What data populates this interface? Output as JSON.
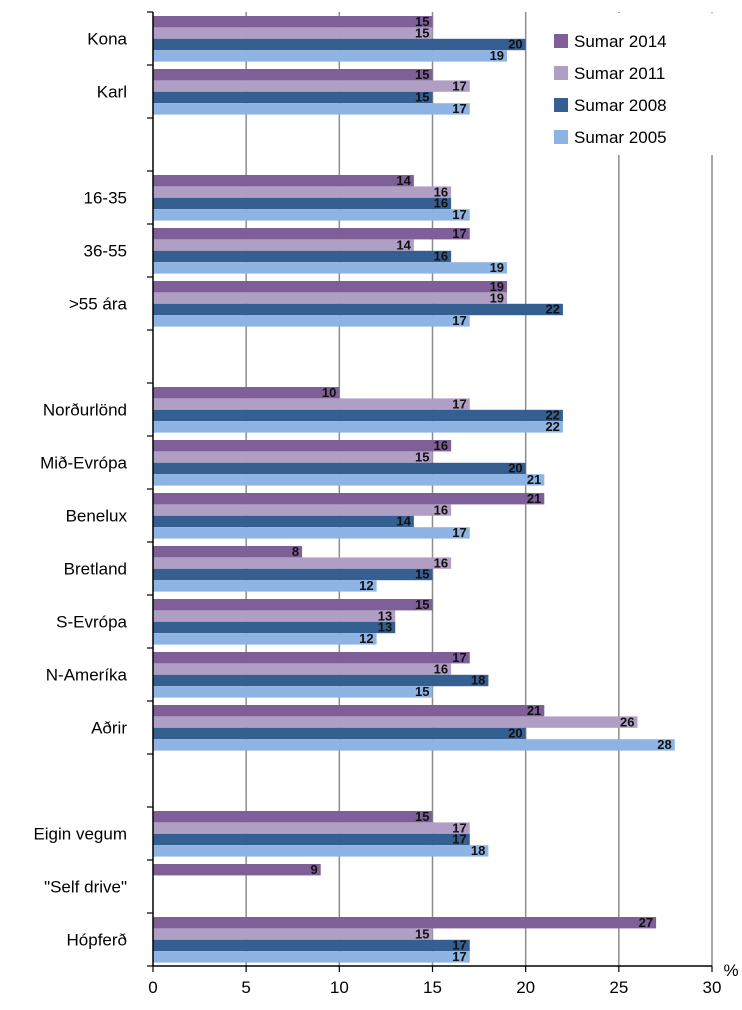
{
  "chart_data": {
    "type": "bar",
    "orientation": "horizontal",
    "xlim": [
      0,
      30
    ],
    "x_ticks": [
      0,
      5,
      10,
      15,
      20,
      25,
      30
    ],
    "xlabel": "%",
    "grid": true,
    "legend_position": "top-right",
    "series": [
      {
        "name": "Sumar 2014",
        "color": "#7f5f98"
      },
      {
        "name": "Sumar 2011",
        "color": "#b09ec4"
      },
      {
        "name": "Sumar 2008",
        "color": "#355f91"
      },
      {
        "name": "Sumar 2005",
        "color": "#8db4e2"
      }
    ],
    "groups": [
      {
        "label": "Kona",
        "values": [
          15,
          15,
          20,
          19
        ]
      },
      {
        "label": "Karl",
        "values": [
          15,
          17,
          15,
          17
        ]
      },
      {
        "label": "",
        "values": [
          null,
          null,
          null,
          null
        ]
      },
      {
        "label": "16-35",
        "values": [
          14,
          16,
          16,
          17
        ]
      },
      {
        "label": "36-55",
        "values": [
          17,
          14,
          16,
          19
        ]
      },
      {
        "label": ">55 ára",
        "values": [
          19,
          19,
          22,
          17
        ]
      },
      {
        "label": "",
        "values": [
          null,
          null,
          null,
          null
        ]
      },
      {
        "label": "Norðurlönd",
        "values": [
          10,
          17,
          22,
          22
        ]
      },
      {
        "label": "Mið-Evrópa",
        "values": [
          16,
          15,
          20,
          21
        ]
      },
      {
        "label": "Benelux",
        "values": [
          21,
          16,
          14,
          17
        ]
      },
      {
        "label": "Bretland",
        "values": [
          8,
          16,
          15,
          12
        ]
      },
      {
        "label": "S-Evrópa",
        "values": [
          15,
          13,
          13,
          12
        ]
      },
      {
        "label": "N-Ameríka",
        "values": [
          17,
          16,
          18,
          15
        ]
      },
      {
        "label": "Aðrir",
        "values": [
          21,
          26,
          20,
          28
        ]
      },
      {
        "label": "",
        "values": [
          null,
          null,
          null,
          null
        ]
      },
      {
        "label": "Eigin vegum",
        "values": [
          15,
          17,
          17,
          18
        ]
      },
      {
        "label": "\"Self drive\"",
        "values": [
          9,
          null,
          null,
          null
        ]
      },
      {
        "label": "Hópferð",
        "values": [
          27,
          15,
          17,
          17
        ]
      }
    ]
  }
}
